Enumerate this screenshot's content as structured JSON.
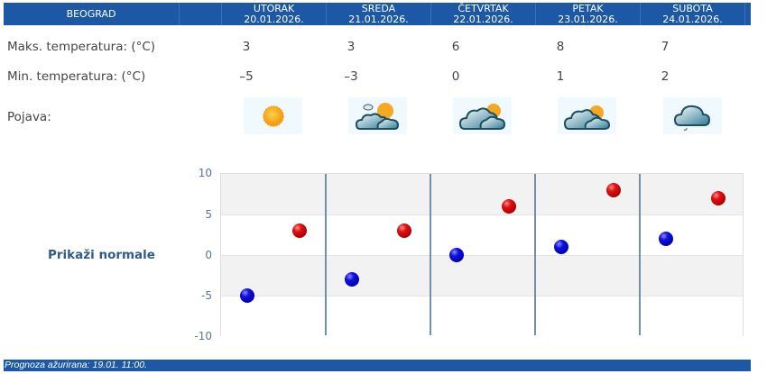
{
  "header": {
    "city": "BEOGRAD",
    "days": [
      {
        "name": "UTORAK",
        "date": "20.01.2026."
      },
      {
        "name": "SREDA",
        "date": "21.01.2026."
      },
      {
        "name": "ČETVRTAK",
        "date": "22.01.2026."
      },
      {
        "name": "PETAK",
        "date": "23.01.2026."
      },
      {
        "name": "SUBOTA",
        "date": "24.01.2026."
      }
    ]
  },
  "rows": {
    "max_label": "Maks. temperatura: (°C)",
    "min_label": "Min. temperatura: (°C)",
    "phenomenon_label": "Pojava:",
    "max": [
      "3",
      "3",
      "6",
      "8",
      "7"
    ],
    "min": [
      "–5",
      "–3",
      "0",
      "1",
      "2"
    ],
    "icons": [
      "sunny-icon",
      "partly-cloudy-icon",
      "mostly-cloudy-sun-icon",
      "mostly-cloudy-sun-icon",
      "cloudy-light-rain-icon"
    ]
  },
  "normals_link": "Prikaži normale",
  "footer": "Prognoza ažurirana:  19.01. 11:00.",
  "colors": {
    "header_bg": "#1c58a6",
    "max_dot": "#cc0000",
    "min_dot": "#0000cc",
    "label_blue": "#2e5b8c"
  },
  "chart_data": {
    "type": "scatter",
    "title": "",
    "xlabel": "",
    "ylabel": "",
    "categories": [
      "20.01.2026.",
      "21.01.2026.",
      "22.01.2026.",
      "23.01.2026.",
      "24.01.2026."
    ],
    "series": [
      {
        "name": "Min. temperatura",
        "color": "#0000cc",
        "values": [
          -5,
          -3,
          0,
          1,
          2
        ]
      },
      {
        "name": "Maks. temperatura",
        "color": "#cc0000",
        "values": [
          3,
          3,
          6,
          8,
          7
        ]
      }
    ],
    "yticks": [
      "10",
      "5",
      "0",
      "-5",
      "-10"
    ],
    "ylim": [
      -10,
      10
    ],
    "grid": true,
    "legend": "none"
  }
}
